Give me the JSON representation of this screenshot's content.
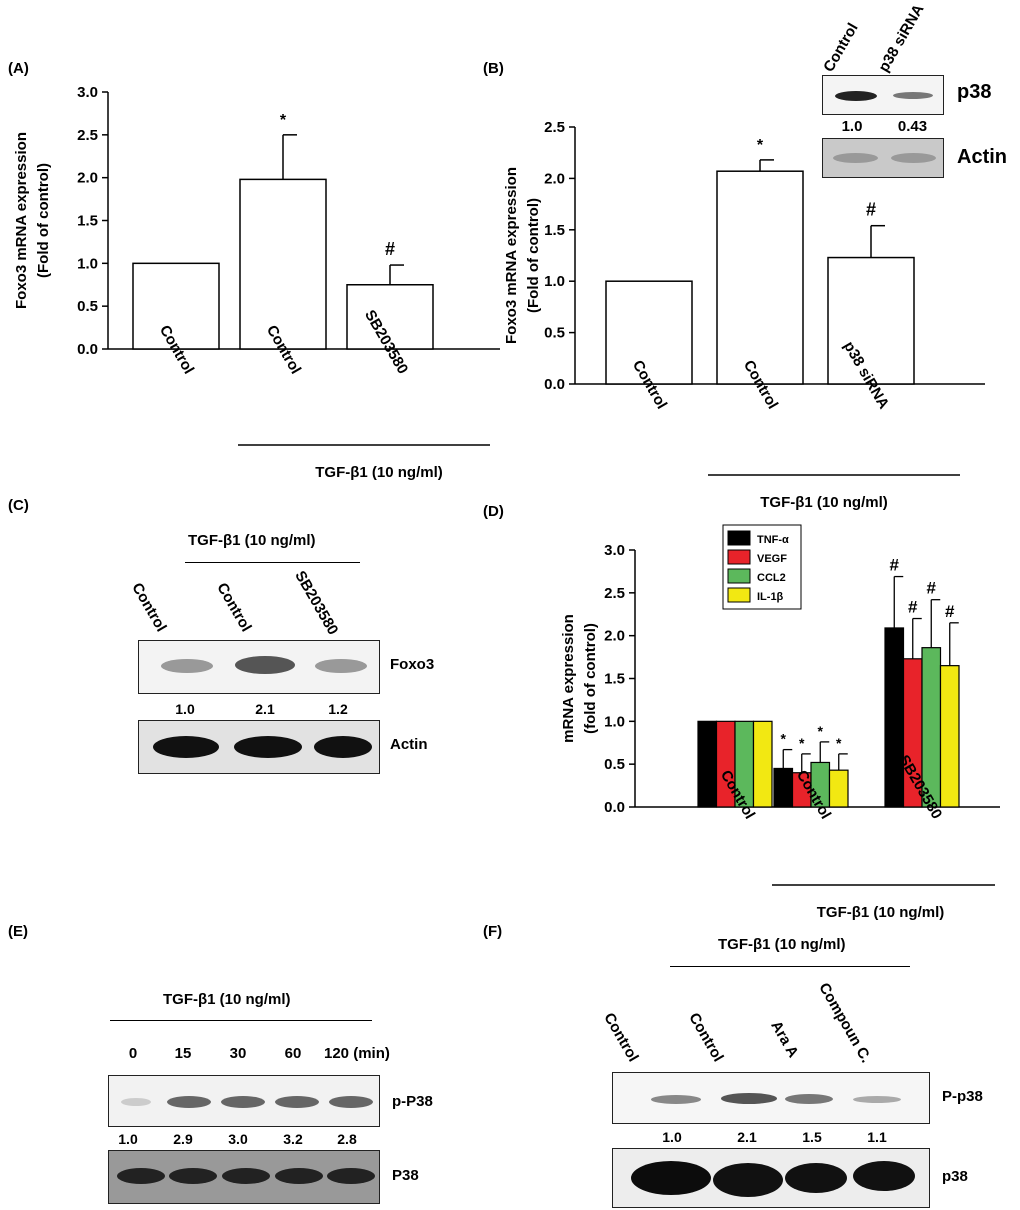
{
  "chart_data": [
    {
      "id": "A",
      "type": "bar",
      "label": "(A)",
      "ylabel_line1": "Foxo3 mRNA expression",
      "ylabel_line2": "(Fold of control)",
      "ylim": [
        0,
        3
      ],
      "ticks": [
        "0.0",
        "0.5",
        "1.0",
        "1.5",
        "2.0",
        "2.5",
        "3.0"
      ],
      "categories": [
        "Control",
        "Control",
        "SB203580"
      ],
      "values": [
        1.0,
        1.98,
        0.75
      ],
      "errors": [
        0,
        0.52,
        0.23
      ],
      "annotations": [
        "",
        "*",
        "#"
      ],
      "group_label": "TGF-β1 (10 ng/ml)"
    },
    {
      "id": "B",
      "type": "bar",
      "label": "(B)",
      "ylabel_line1": "Foxo3 mRNA expression",
      "ylabel_line2": "(Fold of control)",
      "ylim": [
        0,
        2.5
      ],
      "ticks": [
        "0.0",
        "0.5",
        "1.0",
        "1.5",
        "2.0",
        "2.5"
      ],
      "categories": [
        "Control",
        "Control",
        "p38 siRNA"
      ],
      "values": [
        1.0,
        2.07,
        1.23
      ],
      "errors": [
        0,
        0.11,
        0.31
      ],
      "annotations": [
        "",
        "*",
        "#"
      ],
      "group_label": "TGF-β1 (10 ng/ml)"
    },
    {
      "id": "D",
      "type": "bar",
      "label": "(D)",
      "ylabel_line1": "mRNA expression",
      "ylabel_line2": "(fold of control)",
      "ylim": [
        0,
        3
      ],
      "ticks": [
        "0.0",
        "0.5",
        "1.0",
        "1.5",
        "2.0",
        "2.5",
        "3.0"
      ],
      "categories": [
        "Control",
        "Control",
        "SB203580"
      ],
      "series": [
        {
          "name": "TNF-α",
          "color": "#000000",
          "values": [
            1.0,
            0.45,
            2.09
          ],
          "errors": [
            0,
            0.22,
            0.6
          ],
          "annotations": [
            "",
            "*",
            "#"
          ]
        },
        {
          "name": "VEGF",
          "color": "#e8232a",
          "values": [
            1.0,
            0.4,
            1.73
          ],
          "errors": [
            0,
            0.22,
            0.47
          ],
          "annotations": [
            "",
            "*",
            "#"
          ]
        },
        {
          "name": "CCL2",
          "color": "#5cb85c",
          "values": [
            1.0,
            0.52,
            1.86
          ],
          "errors": [
            0,
            0.24,
            0.56
          ],
          "annotations": [
            "",
            "*",
            "#"
          ]
        },
        {
          "name": "IL-1β",
          "color": "#f2e812",
          "values": [
            1.0,
            0.43,
            1.65
          ],
          "errors": [
            0,
            0.19,
            0.5
          ],
          "annotations": [
            "",
            "*",
            "#"
          ]
        }
      ],
      "group_label": "TGF-β1 (10 ng/ml)"
    }
  ],
  "panel_b_inset": {
    "lanes": [
      "Control",
      "p38 siRNA"
    ],
    "target": "p38",
    "values": [
      "1.0",
      "0.43"
    ],
    "loading": "Actin"
  },
  "panel_c": {
    "label": "(C)",
    "treatment": "TGF-β1 (10 ng/ml)",
    "lanes": [
      "Control",
      "Control",
      "SB203580"
    ],
    "target": "Foxo3",
    "values": [
      "1.0",
      "2.1",
      "1.2"
    ],
    "loading": "Actin"
  },
  "panel_e": {
    "label": "(E)",
    "treatment": "TGF-β1 (10 ng/ml)",
    "times": [
      "0",
      "15",
      "30",
      "60",
      "120 (min)"
    ],
    "target": "p-P38",
    "values": [
      "1.0",
      "2.9",
      "3.0",
      "3.2",
      "2.8"
    ],
    "loading": "P38"
  },
  "panel_f": {
    "label": "(F)",
    "treatment": "TGF-β1 (10 ng/ml)",
    "lanes": [
      "Control",
      "Control",
      "Ara A",
      "Compoun C."
    ],
    "target": "P-p38",
    "values": [
      "1.0",
      "2.1",
      "1.5",
      "1.1"
    ],
    "loading": "p38"
  }
}
